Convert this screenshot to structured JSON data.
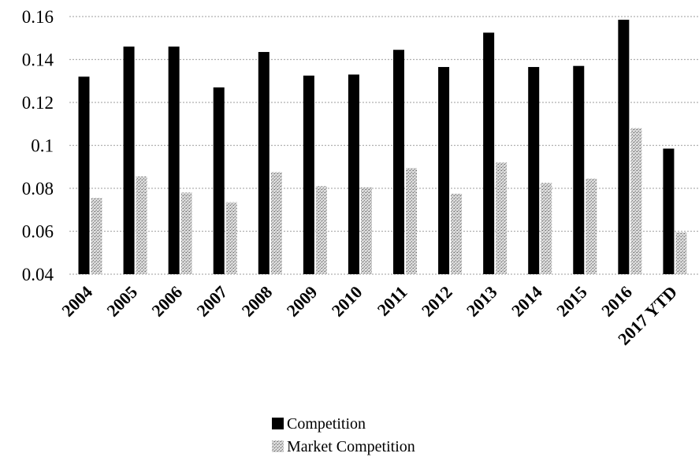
{
  "chart_data": {
    "type": "bar",
    "categories": [
      "2004",
      "2005",
      "2006",
      "2007",
      "2008",
      "2009",
      "2010",
      "2011",
      "2012",
      "2013",
      "2014",
      "2015",
      "2016",
      "2017 YTD"
    ],
    "series": [
      {
        "name": "Competition",
        "color": "#000000",
        "values": [
          0.132,
          0.146,
          0.146,
          0.127,
          0.1435,
          0.1325,
          0.133,
          0.1445,
          0.1365,
          0.1525,
          0.1365,
          0.137,
          0.1585,
          0.0985
        ]
      },
      {
        "name": "Market Competition",
        "color": "#c8c8c8",
        "pattern": "dotted-gray",
        "values": [
          0.0755,
          0.0855,
          0.078,
          0.0735,
          0.0875,
          0.081,
          0.0805,
          0.0895,
          0.0775,
          0.092,
          0.0825,
          0.0845,
          0.108,
          0.0595
        ]
      }
    ],
    "yticks": [
      "0.04",
      "0.06",
      "0.08",
      "0.1",
      "0.12",
      "0.14",
      "0.16"
    ],
    "ylim": [
      0.04,
      0.16
    ],
    "title": "",
    "xlabel": "",
    "ylabel": "",
    "grid": "horizontal-dotted",
    "legend_position": "bottom-center"
  }
}
